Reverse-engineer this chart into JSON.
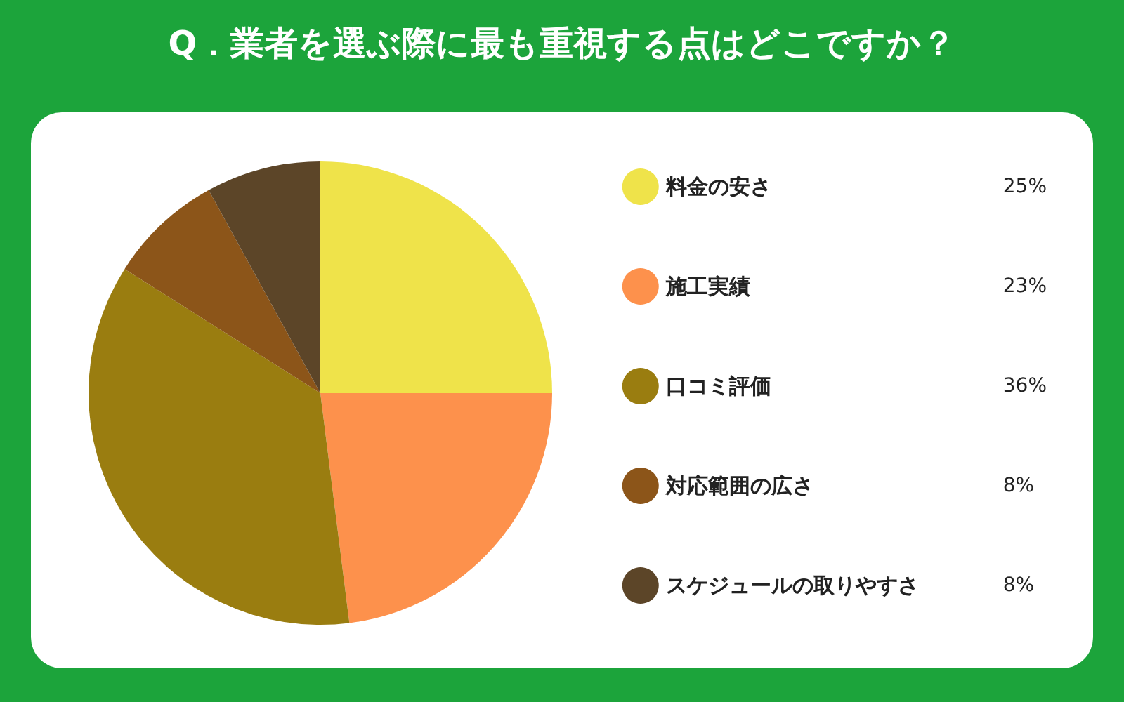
{
  "chart_data": {
    "type": "pie",
    "title": "Q．業者を選ぶ際に最も重視する点はどこですか？",
    "categories": [
      "料金の安さ",
      "施工実績",
      "口コミ評価",
      "対応範囲の広さ",
      "スケジュールの取りやすさ"
    ],
    "values": [
      25,
      23,
      36,
      8,
      8
    ],
    "value_labels": [
      "25%",
      "23%",
      "36%",
      "8%",
      "8%"
    ],
    "colors": [
      "#efe34a",
      "#fd914c",
      "#9a7d10",
      "#8c5519",
      "#5c4528"
    ],
    "legend": "right"
  }
}
